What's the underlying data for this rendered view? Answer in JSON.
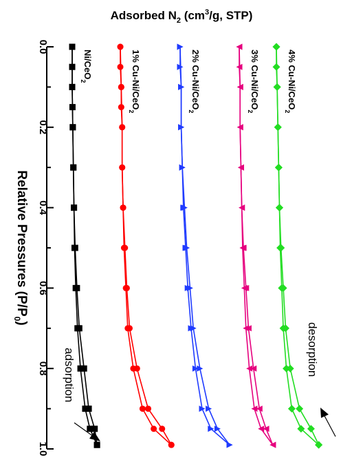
{
  "chart_data": {
    "type": "line",
    "orientation": "rotated",
    "title": "Adsorbed N₂ (cm³/g, STP)",
    "title_parts": {
      "pre": "Adsorbed N",
      "sub": "2",
      "mid": " (cm",
      "sup": "3",
      "post": "/g, STP)"
    },
    "xlabel": "Relative Pressures (P/P₀)",
    "xlabel_parts": {
      "pre": "Relative Pressures (P/P",
      "sub": "0",
      "post": ")"
    },
    "xlim": [
      0.0,
      1.0
    ],
    "xticks": [
      "0.0",
      "0.2",
      "0.4",
      "0.6",
      "0.8",
      "1.0"
    ],
    "xtick_values": [
      0.0,
      0.2,
      0.4,
      0.6,
      0.8,
      1.0
    ],
    "y_axis": "Adsorbed N2 (offset, unlabeled)",
    "grid": false,
    "series": [
      {
        "name": "Ni/CeO₂",
        "label_parts": {
          "pre": "Ni/CeO",
          "sub": "2"
        },
        "color": "#000000",
        "marker": "square",
        "adsorption": [
          [
            0.0,
            0
          ],
          [
            0.05,
            0
          ],
          [
            0.1,
            0
          ],
          [
            0.15,
            0.5
          ],
          [
            0.2,
            1
          ],
          [
            0.3,
            2
          ],
          [
            0.4,
            3
          ],
          [
            0.5,
            4
          ],
          [
            0.6,
            6
          ],
          [
            0.7,
            9
          ],
          [
            0.8,
            14
          ],
          [
            0.9,
            22
          ],
          [
            0.95,
            30
          ],
          [
            0.99,
            42
          ]
        ],
        "desorption": [
          [
            0.99,
            42
          ],
          [
            0.95,
            38
          ],
          [
            0.9,
            28
          ],
          [
            0.8,
            20
          ],
          [
            0.7,
            12
          ],
          [
            0.6,
            8
          ],
          [
            0.5,
            5
          ],
          [
            0.4,
            3
          ],
          [
            0.3,
            2
          ],
          [
            0.2,
            1
          ],
          [
            0.1,
            0
          ],
          [
            0.0,
            0
          ]
        ]
      },
      {
        "name": "1% Cu-Ni/CeO₂",
        "label_parts": {
          "pre": "1% Cu-Ni/CeO",
          "sub": "2"
        },
        "color": "#ff0000",
        "marker": "circle",
        "adsorption": [
          [
            0.0,
            0
          ],
          [
            0.05,
            0
          ],
          [
            0.1,
            1
          ],
          [
            0.15,
            1
          ],
          [
            0.2,
            2
          ],
          [
            0.3,
            2
          ],
          [
            0.4,
            3
          ],
          [
            0.5,
            4
          ],
          [
            0.6,
            6
          ],
          [
            0.7,
            8
          ],
          [
            0.8,
            14
          ],
          [
            0.9,
            24
          ],
          [
            0.95,
            36
          ],
          [
            0.99,
            55
          ]
        ],
        "desorption": [
          [
            0.99,
            55
          ],
          [
            0.95,
            45
          ],
          [
            0.9,
            30
          ],
          [
            0.8,
            18
          ],
          [
            0.7,
            10
          ],
          [
            0.6,
            7
          ],
          [
            0.5,
            5
          ],
          [
            0.4,
            3
          ],
          [
            0.3,
            2
          ],
          [
            0.2,
            2
          ],
          [
            0.1,
            1
          ],
          [
            0.0,
            0
          ]
        ]
      },
      {
        "name": "2% Cu-Ni/CeO₂",
        "label_parts": {
          "pre": "2% Cu-Ni/CeO",
          "sub": "2"
        },
        "color": "#1f3bff",
        "marker": "triangle-right",
        "adsorption": [
          [
            0.0,
            0
          ],
          [
            0.05,
            0
          ],
          [
            0.1,
            1
          ],
          [
            0.2,
            1
          ],
          [
            0.3,
            2
          ],
          [
            0.4,
            3
          ],
          [
            0.5,
            5
          ],
          [
            0.6,
            7
          ],
          [
            0.7,
            10
          ],
          [
            0.8,
            14
          ],
          [
            0.9,
            20
          ],
          [
            0.95,
            28
          ],
          [
            0.99,
            45
          ]
        ],
        "desorption": [
          [
            0.99,
            45
          ],
          [
            0.95,
            34
          ],
          [
            0.9,
            26
          ],
          [
            0.8,
            18
          ],
          [
            0.7,
            12
          ],
          [
            0.6,
            9
          ],
          [
            0.5,
            6
          ],
          [
            0.4,
            4
          ],
          [
            0.3,
            2
          ],
          [
            0.2,
            1
          ],
          [
            0.1,
            1
          ],
          [
            0.0,
            0
          ]
        ]
      },
      {
        "name": "3% Cu-Ni/CeO₂",
        "label_parts": {
          "pre": "3% Cu-Ni/CeO",
          "sub": "2"
        },
        "color": "#e6007e",
        "marker": "triangle-left",
        "adsorption": [
          [
            0.0,
            0
          ],
          [
            0.05,
            0
          ],
          [
            0.1,
            1
          ],
          [
            0.2,
            1
          ],
          [
            0.3,
            2
          ],
          [
            0.4,
            3
          ],
          [
            0.5,
            4
          ],
          [
            0.6,
            6
          ],
          [
            0.7,
            8
          ],
          [
            0.8,
            12
          ],
          [
            0.9,
            18
          ],
          [
            0.95,
            26
          ],
          [
            0.99,
            40
          ]
        ],
        "desorption": [
          [
            0.99,
            40
          ],
          [
            0.95,
            32
          ],
          [
            0.9,
            24
          ],
          [
            0.8,
            17
          ],
          [
            0.7,
            11
          ],
          [
            0.6,
            8
          ],
          [
            0.5,
            5
          ],
          [
            0.4,
            3
          ],
          [
            0.3,
            2
          ],
          [
            0.2,
            1
          ],
          [
            0.1,
            1
          ],
          [
            0.0,
            0
          ]
        ]
      },
      {
        "name": "4% Cu-Ni/CeO₂",
        "label_parts": {
          "pre": "4% Cu-Ni/CeO",
          "sub": "2"
        },
        "color": "#22dd22",
        "marker": "diamond",
        "adsorption": [
          [
            0.0,
            0
          ],
          [
            0.05,
            0
          ],
          [
            0.1,
            1
          ],
          [
            0.2,
            2
          ],
          [
            0.3,
            3
          ],
          [
            0.4,
            4
          ],
          [
            0.5,
            5
          ],
          [
            0.6,
            7
          ],
          [
            0.7,
            9
          ],
          [
            0.8,
            13
          ],
          [
            0.9,
            20
          ],
          [
            0.95,
            32
          ],
          [
            0.99,
            55
          ]
        ],
        "desorption": [
          [
            0.99,
            55
          ],
          [
            0.95,
            45
          ],
          [
            0.9,
            30
          ],
          [
            0.8,
            18
          ],
          [
            0.7,
            12
          ],
          [
            0.6,
            9
          ],
          [
            0.5,
            6
          ],
          [
            0.4,
            4
          ],
          [
            0.3,
            3
          ],
          [
            0.2,
            2
          ],
          [
            0.1,
            1
          ],
          [
            0.0,
            0
          ]
        ]
      }
    ],
    "annotations": [
      {
        "text": "adsorption",
        "target_series": 0
      },
      {
        "text": "desorption",
        "target_series": 4
      }
    ]
  }
}
